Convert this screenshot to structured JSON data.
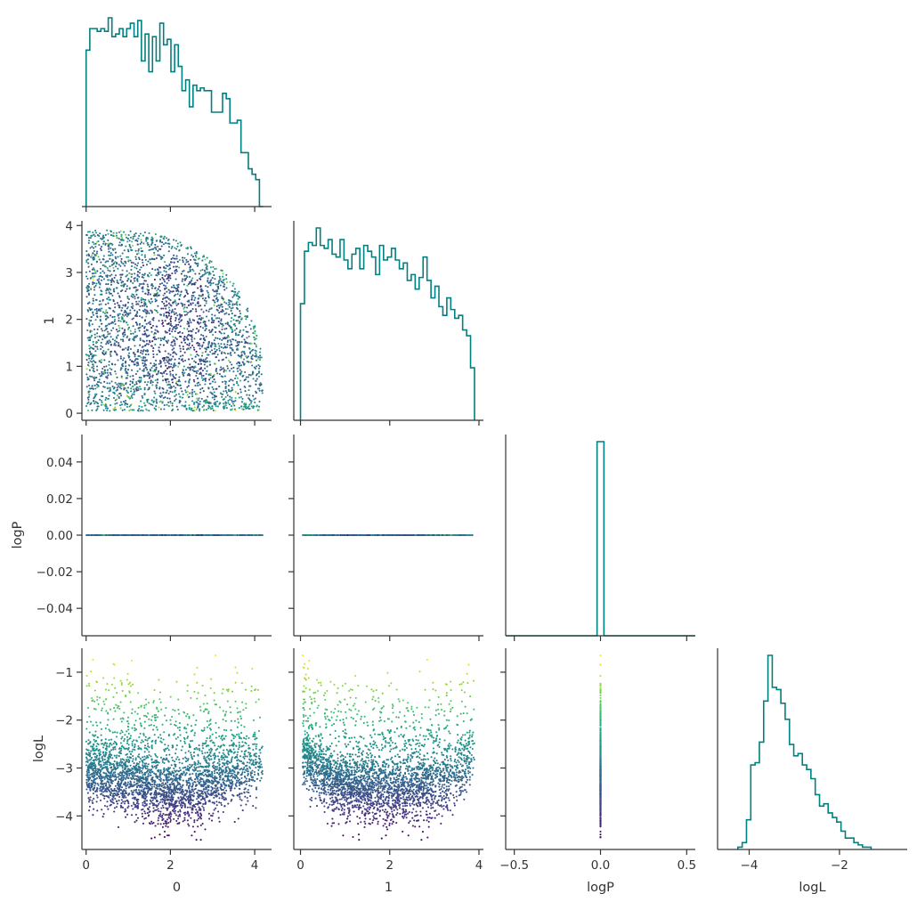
{
  "figure": {
    "background": "#ffffff",
    "hist_color": "#008080",
    "colormap": "viridis"
  },
  "chart_data": {
    "type": "scatter",
    "variables": [
      "0",
      "1",
      "logP",
      "logL"
    ],
    "axis_labels": {
      "x": [
        "0",
        "1",
        "logP",
        "logL"
      ],
      "y": [
        "1",
        "logP",
        "logL"
      ]
    },
    "ranges": {
      "0": [
        -0.1,
        4.4
      ],
      "1": [
        -0.15,
        4.1
      ],
      "logP": [
        -0.055,
        0.055
      ],
      "logL": [
        -4.7,
        -0.5
      ]
    },
    "ticks": {
      "0": {
        "values": [
          0,
          2,
          4
        ],
        "labels": [
          "0",
          "2",
          "4"
        ]
      },
      "1": {
        "values": [
          0,
          1,
          2,
          3,
          4
        ],
        "labels": [
          "0",
          "1",
          "2",
          "3",
          "4"
        ]
      },
      "1_x": {
        "values": [
          0,
          2,
          4
        ],
        "labels": [
          "0",
          "2",
          "4"
        ]
      },
      "logP": {
        "values": [
          -0.04,
          -0.02,
          0.0,
          0.02,
          0.04
        ],
        "labels": [
          "−0.04",
          "−0.02",
          "0.00",
          "0.02",
          "0.04"
        ]
      },
      "logP_x": {
        "values": [
          -0.5,
          0.0,
          0.5
        ],
        "labels": [
          "−0.5",
          "0.0",
          "0.5"
        ]
      },
      "logL": {
        "values": [
          -4,
          -3,
          -2,
          -1
        ],
        "labels": [
          "−4",
          "−3",
          "−2",
          "−1"
        ]
      },
      "logL_x": {
        "values": [
          -4,
          -2
        ],
        "labels": [
          "−4",
          "−2"
        ]
      }
    },
    "logP_x_range": [
      -0.55,
      0.55
    ],
    "histograms": {
      "0": {
        "edges_start": 0.0,
        "edges_end": 4.2,
        "counts": [
          58,
          66,
          66,
          65,
          66,
          65,
          70,
          63,
          64,
          66,
          63,
          66,
          68,
          63,
          69,
          54,
          64,
          50,
          63,
          54,
          68,
          60,
          62,
          50,
          60,
          52,
          43,
          47,
          37,
          45,
          43,
          44,
          43,
          43,
          35,
          35,
          35,
          42,
          40,
          31,
          31,
          32,
          20,
          20,
          14,
          12,
          10,
          0
        ]
      },
      "1": {
        "edges_start": 0.0,
        "edges_end": 3.9,
        "counts": [
          40,
          58,
          61,
          60,
          66,
          60,
          59,
          62,
          57,
          56,
          62,
          55,
          52,
          57,
          59,
          52,
          60,
          58,
          56,
          50,
          60,
          55,
          56,
          59,
          55,
          52,
          54,
          48,
          50,
          45,
          49,
          56,
          48,
          42,
          46,
          39,
          36,
          42,
          38,
          35,
          36,
          31,
          29,
          18
        ]
      },
      "logP": {
        "edges": [
          -0.02,
          0.02
        ],
        "counts": [
          100
        ]
      },
      "logL": {
        "edges_start": -4.25,
        "edges_end": -1.3,
        "counts": [
          1,
          3,
          13,
          37,
          38,
          47,
          65,
          85,
          71,
          70,
          64,
          57,
          46,
          41,
          42,
          37,
          35,
          31,
          24,
          19,
          20,
          16,
          14,
          12,
          8,
          5,
          5,
          3,
          2,
          1,
          1
        ]
      }
    },
    "scatter_points": 3000
  }
}
